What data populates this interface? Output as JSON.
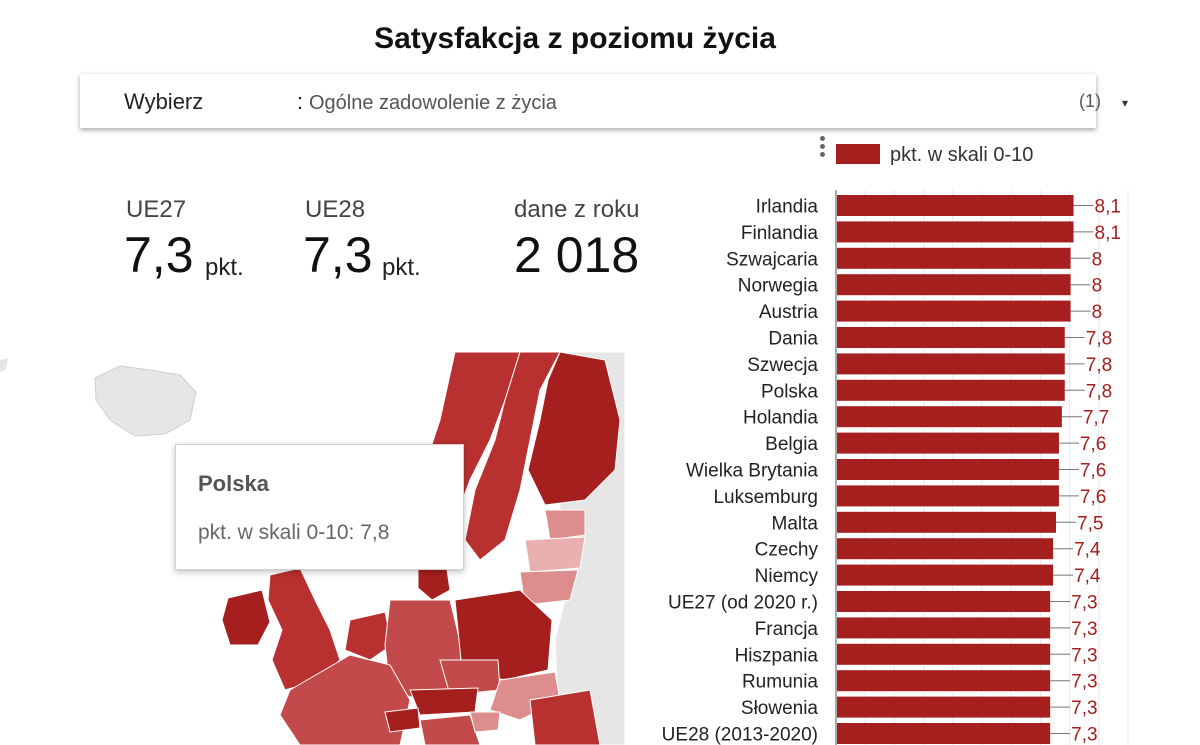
{
  "title": "Satysfakcja z poziomu życia",
  "selector": {
    "label": "Wybierz",
    "value": "Ogólne zadowolenie z życia",
    "count": "(1)",
    "caret": "▾"
  },
  "kpis": [
    {
      "label": "UE27",
      "value": "7,3",
      "unit": "pkt."
    },
    {
      "label": "UE28",
      "value": "7,3",
      "unit": "pkt."
    },
    {
      "label": "dane z roku",
      "value": "2 018"
    }
  ],
  "legend": {
    "label": "pkt. w skali 0-10"
  },
  "tooltip": {
    "title": "Polska",
    "body": "pkt. w skali 0-10: 7,8"
  },
  "colors": {
    "bar": "#a51f1f",
    "map_dark": "#a51f1f",
    "map_mid": "#c24a4a",
    "map_light": "#dd8d8d",
    "map_none": "#e6e6e6"
  },
  "chart_data": {
    "type": "bar",
    "orientation": "horizontal",
    "categories": [
      "Irlandia",
      "Finlandia",
      "Szwajcaria",
      "Norwegia",
      "Austria",
      "Dania",
      "Szwecja",
      "Polska",
      "Holandia",
      "Belgia",
      "Wielka Brytania",
      "Luksemburg",
      "Malta",
      "Czechy",
      "Niemcy",
      "UE27 (od 2020 r.)",
      "Francja",
      "Hiszpania",
      "Rumunia",
      "Słowenia",
      "UE28 (2013-2020)"
    ],
    "values": [
      8.1,
      8.1,
      8,
      8,
      8,
      7.8,
      7.8,
      7.8,
      7.7,
      7.6,
      7.6,
      7.6,
      7.5,
      7.4,
      7.4,
      7.3,
      7.3,
      7.3,
      7.3,
      7.3,
      7.3
    ],
    "value_labels": [
      "8,1",
      "8,1",
      "8",
      "8",
      "8",
      "7,8",
      "7,8",
      "7,8",
      "7,7",
      "7,6",
      "7,6",
      "7,6",
      "7,5",
      "7,4",
      "7,4",
      "7,3",
      "7,3",
      "7,3",
      "7,3",
      "7,3",
      "7,3"
    ],
    "xlim": [
      0,
      10
    ],
    "grid": true,
    "legend_position": "top-right",
    "series_name": "pkt. w skali 0-10"
  }
}
